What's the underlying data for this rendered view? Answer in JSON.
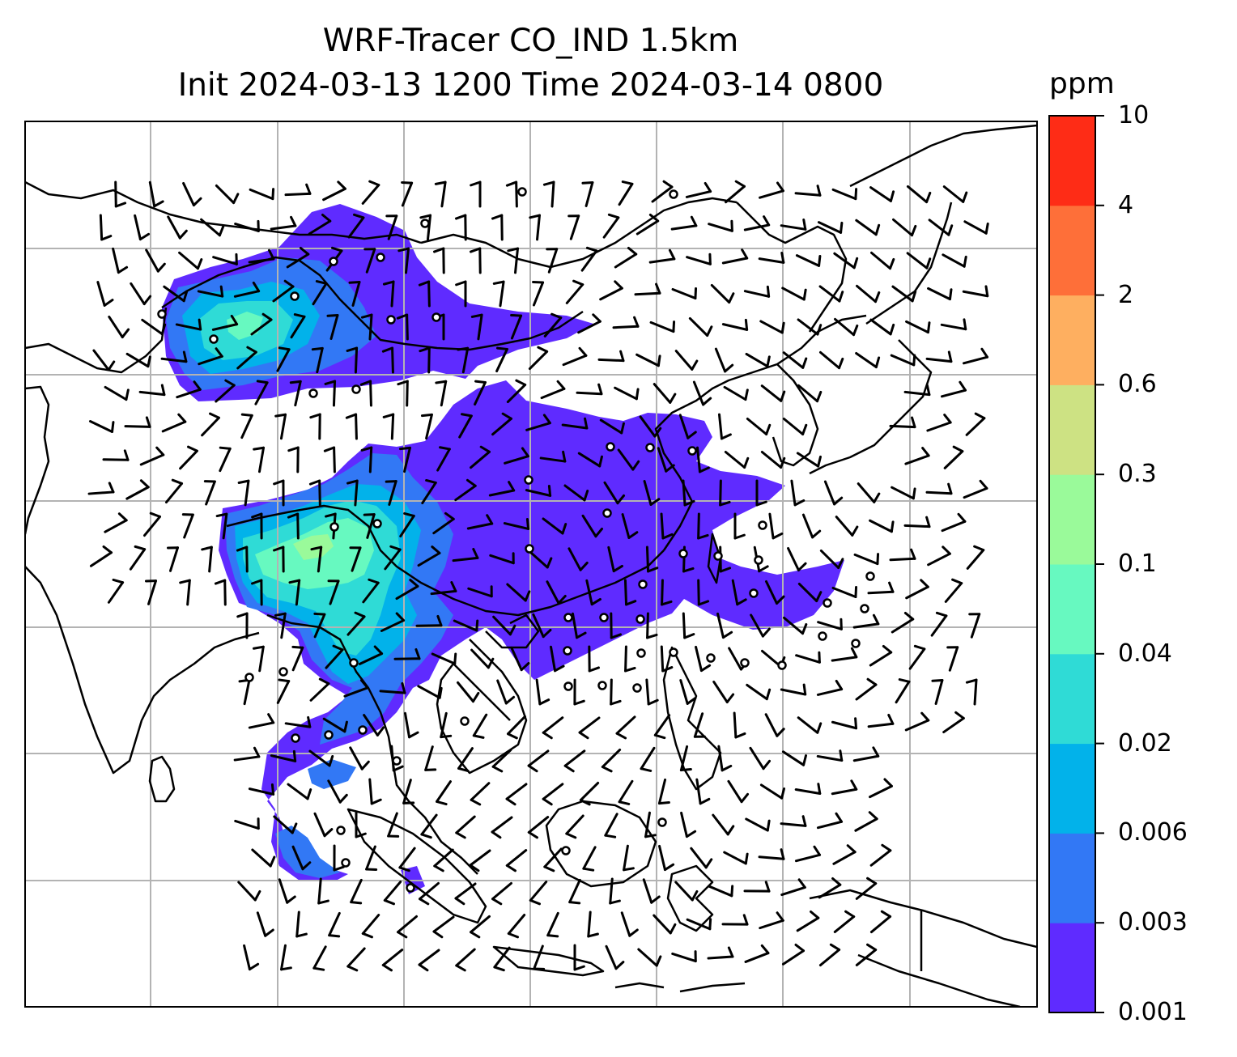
{
  "figure": {
    "title_line1": "WRF-Tracer CO_IND 1.5km",
    "title_line2": "Init 2024-03-13 1200 Time 2024-03-14 0800"
  },
  "colorbar": {
    "unit": "ppm",
    "levels": [
      "0.001",
      "0.003",
      "0.006",
      "0.02",
      "0.04",
      "0.1",
      "0.3",
      "0.6",
      "2",
      "4",
      "10"
    ],
    "colors": [
      "#5f2bff",
      "#3278f5",
      "#02b2ea",
      "#2fdbd6",
      "#67f9c0",
      "#9afa9a",
      "#cde283",
      "#feaf60",
      "#fe6f39",
      "#fe2c16"
    ]
  },
  "map": {
    "gridlines": true,
    "variable": "CO_IND tracer concentration",
    "overlay": "wind barbs and calm circles",
    "grid_color": "#b3b3b3"
  }
}
